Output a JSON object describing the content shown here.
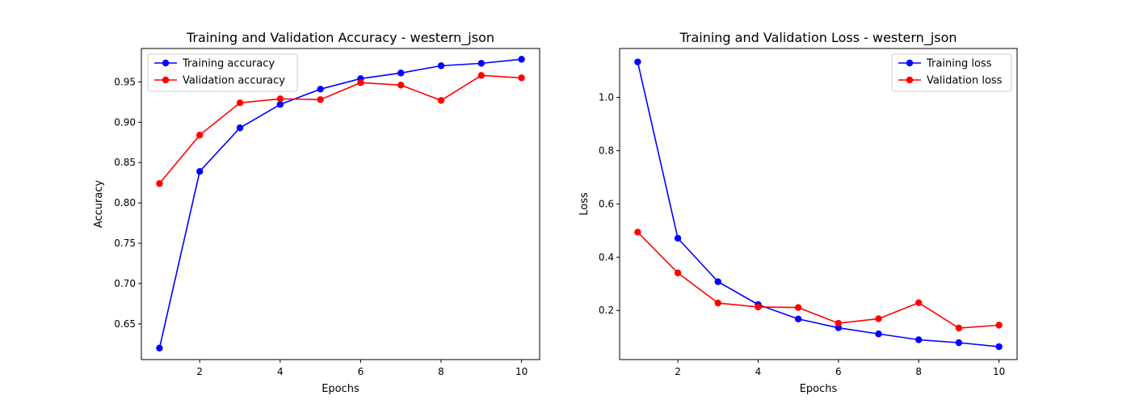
{
  "chart_data": [
    {
      "type": "line",
      "title": "Training and Validation Accuracy - western_json",
      "xlabel": "Epochs",
      "ylabel": "Accuracy",
      "x": [
        1,
        2,
        3,
        4,
        5,
        6,
        7,
        8,
        9,
        10
      ],
      "xlim": [
        0.55,
        10.45
      ],
      "ylim": [
        0.6058,
        0.9914
      ],
      "xticks": [
        2,
        4,
        6,
        8,
        10
      ],
      "yticks": [
        0.65,
        0.7,
        0.75,
        0.8,
        0.85,
        0.9,
        0.95
      ],
      "ytick_labels": [
        "0.65",
        "0.70",
        "0.75",
        "0.80",
        "0.85",
        "0.90",
        "0.95"
      ],
      "legend": "upper left",
      "grid": false,
      "series": [
        {
          "name": "Training accuracy",
          "color": "#0000ff",
          "values": [
            0.62,
            0.839,
            0.893,
            0.922,
            0.941,
            0.954,
            0.961,
            0.97,
            0.973,
            0.978
          ]
        },
        {
          "name": "Validation accuracy",
          "color": "#ff0000",
          "values": [
            0.824,
            0.884,
            0.924,
            0.929,
            0.928,
            0.949,
            0.946,
            0.927,
            0.958,
            0.955
          ]
        }
      ]
    },
    {
      "type": "line",
      "title": "Training and Validation Loss - western_json",
      "xlabel": "Epochs",
      "ylabel": "Loss",
      "x": [
        1,
        2,
        3,
        4,
        5,
        6,
        7,
        8,
        9,
        10
      ],
      "xlim": [
        0.55,
        10.45
      ],
      "ylim": [
        0.0157,
        1.1835
      ],
      "xticks": [
        2,
        4,
        6,
        8,
        10
      ],
      "yticks": [
        0.2,
        0.4,
        0.6,
        0.8,
        1.0
      ],
      "ytick_labels": [
        "0.2",
        "0.4",
        "0.6",
        "0.8",
        "1.0"
      ],
      "legend": "upper right",
      "grid": false,
      "series": [
        {
          "name": "Training loss",
          "color": "#0000ff",
          "values": [
            1.133,
            0.471,
            0.308,
            0.222,
            0.168,
            0.135,
            0.112,
            0.09,
            0.079,
            0.064
          ]
        },
        {
          "name": "Validation loss",
          "color": "#ff0000",
          "values": [
            0.494,
            0.341,
            0.228,
            0.213,
            0.211,
            0.152,
            0.169,
            0.229,
            0.134,
            0.145
          ]
        }
      ]
    }
  ]
}
